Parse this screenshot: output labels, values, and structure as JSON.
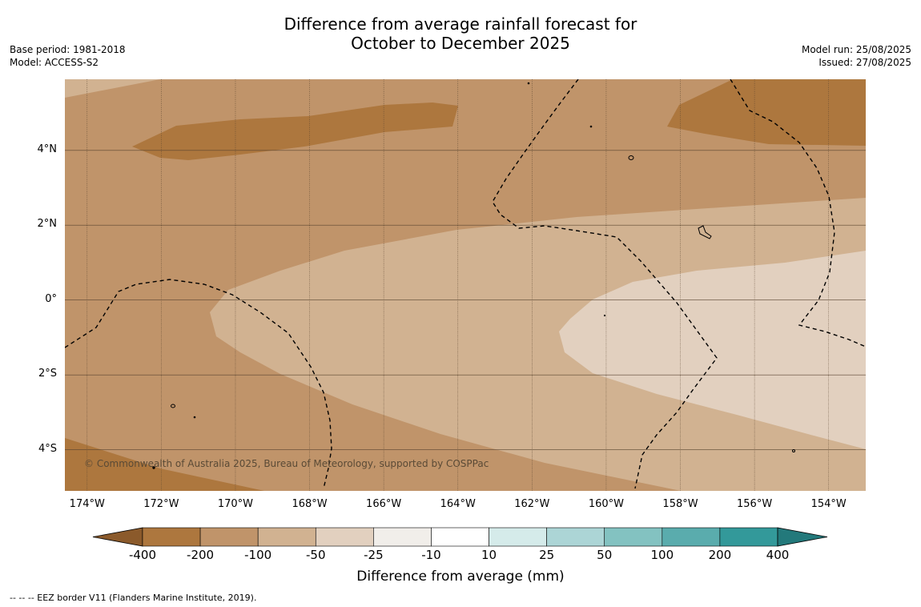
{
  "title": {
    "line1": "Difference from average rainfall forecast for",
    "line2": "October to December 2025"
  },
  "meta_left": {
    "base_period": "Base period: 1981-2018",
    "model": "Model: ACCESS-S2"
  },
  "meta_right": {
    "model_run": "Model run: 25/08/2025",
    "issued": "Issued: 27/08/2025"
  },
  "map": {
    "lon_range": [
      -174.6,
      -153.0
    ],
    "lat_range": [
      -5.1,
      5.9
    ],
    "lat_ticks": [
      {
        "value": 4,
        "label": "4°N"
      },
      {
        "value": 2,
        "label": "2°N"
      },
      {
        "value": 0,
        "label": "0°"
      },
      {
        "value": -2,
        "label": "2°S"
      },
      {
        "value": -4,
        "label": "4°S"
      }
    ],
    "lon_ticks": [
      {
        "value": -174,
        "label": "174°W"
      },
      {
        "value": -172,
        "label": "172°W"
      },
      {
        "value": -170,
        "label": "170°W"
      },
      {
        "value": -168,
        "label": "168°W"
      },
      {
        "value": -166,
        "label": "166°W"
      },
      {
        "value": -164,
        "label": "164°W"
      },
      {
        "value": -162,
        "label": "162°W"
      },
      {
        "value": -160,
        "label": "160°W"
      },
      {
        "value": -158,
        "label": "158°W"
      },
      {
        "value": -156,
        "label": "156°W"
      },
      {
        "value": -154,
        "label": "154°W"
      }
    ],
    "copyright": "© Commonwealth of Australia 2025, Bureau of Meteorology, supported by COSPPac"
  },
  "colorbar": {
    "labels": [
      "-400",
      "-200",
      "-100",
      "-50",
      "-25",
      "-10",
      "10",
      "25",
      "50",
      "100",
      "200",
      "400"
    ],
    "colors": [
      "#ad773e",
      "#c0946a",
      "#d1b291",
      "#e2d0bf",
      "#f1eeea",
      "#ffffff",
      "#d5ebea",
      "#acd5d6",
      "#83c2c1",
      "#5aacad",
      "#33999a"
    ],
    "under_color": "#8b5a2b",
    "over_color": "#23797b",
    "title": "Difference from average (mm)"
  },
  "footnote": "--  --  -- EEZ border V11 (Flanders Marine Institute, 2019)."
}
